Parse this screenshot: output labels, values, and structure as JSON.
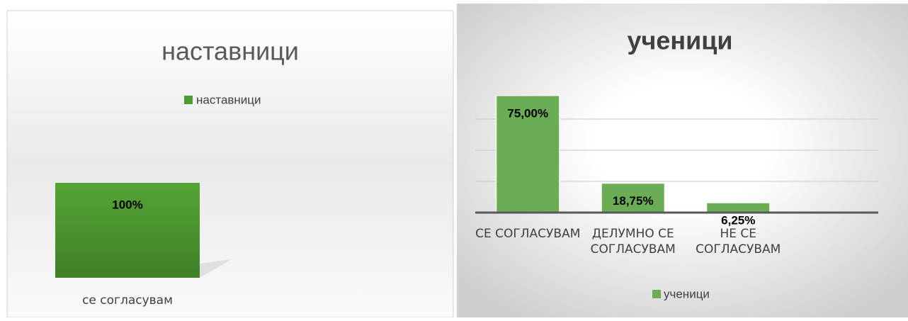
{
  "chart_data": [
    {
      "type": "bar",
      "title": "наставници",
      "legend": "наставници",
      "categories": [
        "се согласувам"
      ],
      "values": [
        100
      ],
      "value_labels": [
        "100%"
      ],
      "color": "#4f9a32",
      "ylim": [
        0,
        100
      ]
    },
    {
      "type": "bar",
      "title": "ученици",
      "legend": "ученици",
      "categories": [
        "СЕ СОГЛАСУВАМ",
        "ДЕЛУМНО СЕ СОГЛАСУВАМ",
        "НЕ СЕ СОГЛАСУВАМ"
      ],
      "values": [
        75,
        18.75,
        6.25
      ],
      "value_labels": [
        "75,00%",
        "18,75%",
        "6,25%"
      ],
      "color": "#6aad55",
      "ylim": [
        0,
        80
      ],
      "yticks": [
        0,
        20,
        40,
        60
      ],
      "grid": true
    }
  ]
}
